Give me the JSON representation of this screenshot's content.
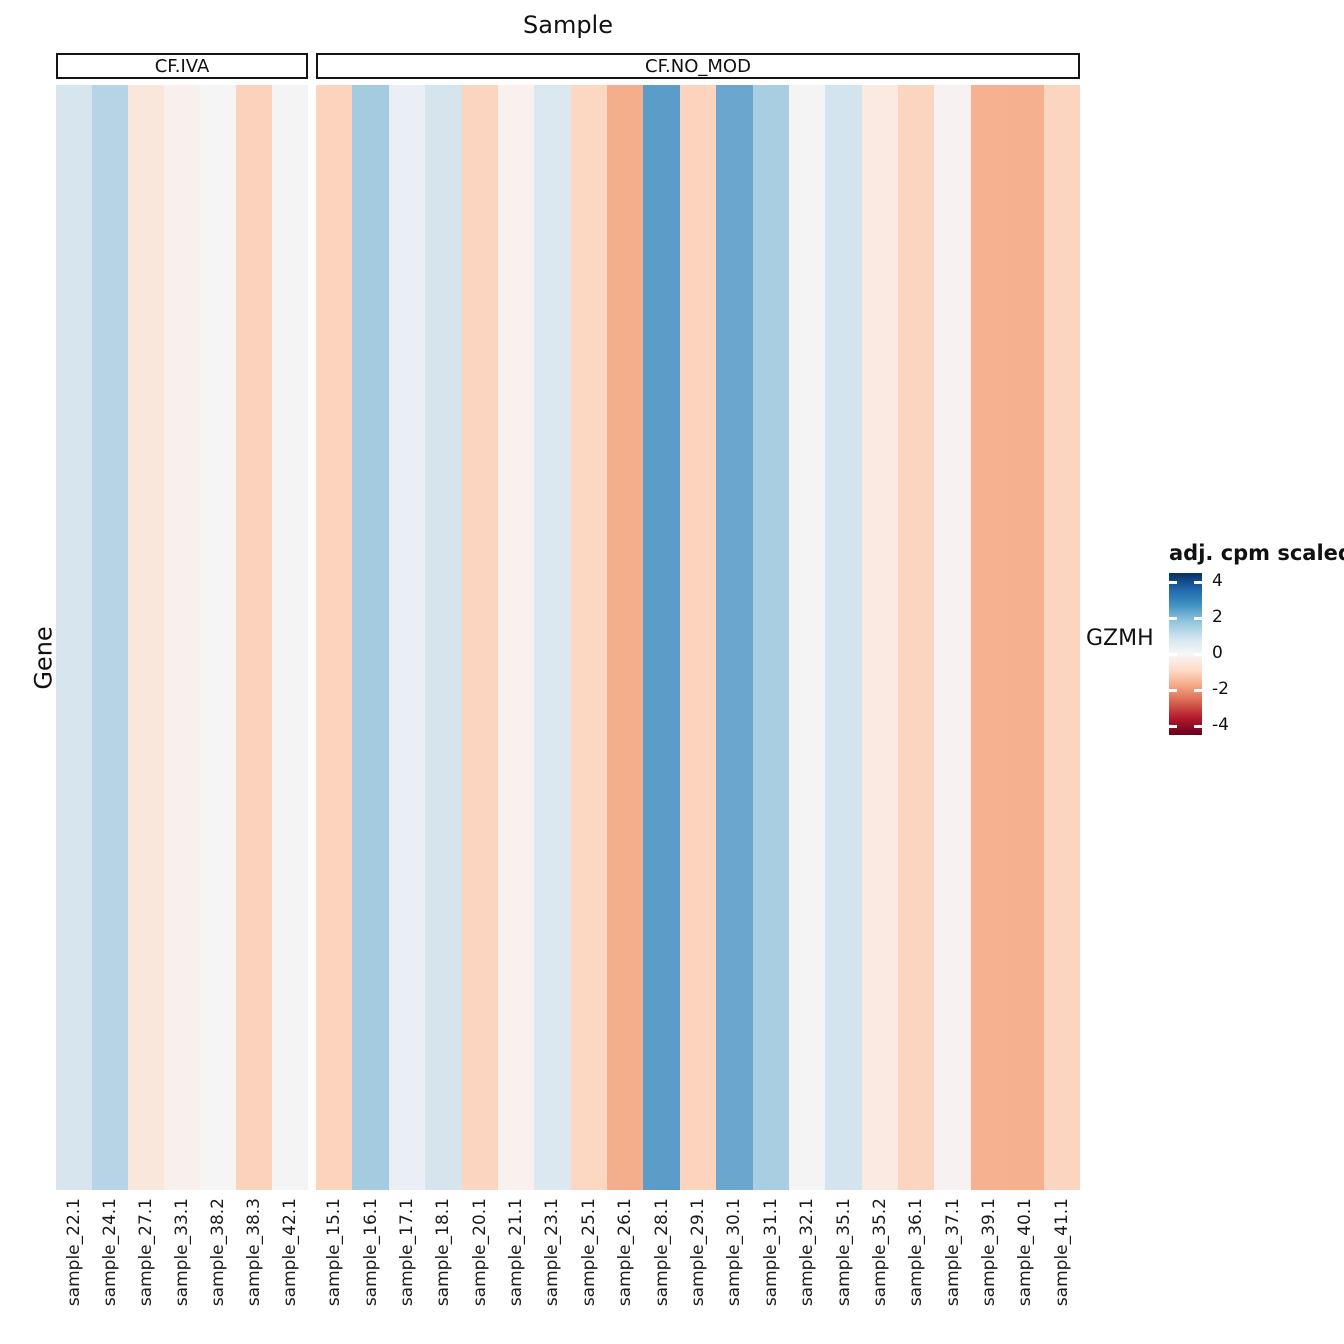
{
  "title": "Sample",
  "y_axis_title": "Gene",
  "row_label": "GZMH",
  "legend": {
    "title": "adj. cpm scaled",
    "tick_labels": [
      "4",
      "2",
      "0",
      "-2",
      "-4"
    ],
    "tick_values": [
      4,
      2,
      0,
      -2,
      -4
    ],
    "limits": [
      -4.5,
      4.5
    ]
  },
  "chart_data": {
    "type": "heatmap",
    "title": "Sample",
    "xlabel": "Sample",
    "ylabel": "Gene",
    "rows": [
      "GZMH"
    ],
    "legend_title": "adj. cpm scaled",
    "legend_position": "right",
    "colorscale": {
      "name": "RdBu",
      "limits": [
        -4.5,
        4.5
      ],
      "ticks": [
        4,
        2,
        0,
        -2,
        -4
      ],
      "stops_top_to_bottom": [
        "#053061",
        "#2166ac",
        "#4393c3",
        "#92c5de",
        "#d1e5f0",
        "#f7f7f7",
        "#fddbc7",
        "#f4a582",
        "#d6604d",
        "#b2182b",
        "#67001f"
      ]
    },
    "groups": [
      {
        "label": "CF.IVA",
        "samples": [
          {
            "id": "sample_22.1",
            "value": 0.85,
            "color": "#d7e5ef"
          },
          {
            "id": "sample_24.1",
            "value": 1.35,
            "color": "#b6d4e5"
          },
          {
            "id": "sample_27.1",
            "value": -0.55,
            "color": "#fae7dc"
          },
          {
            "id": "sample_33.1",
            "value": -0.2,
            "color": "#f8f0ec"
          },
          {
            "id": "sample_38.2",
            "value": -0.05,
            "color": "#f6f5f5"
          },
          {
            "id": "sample_38.3",
            "value": -1.0,
            "color": "#fbd2bb"
          },
          {
            "id": "sample_42.1",
            "value": 0.05,
            "color": "#f5f4f5"
          }
        ]
      },
      {
        "label": "CF.NO_MOD",
        "samples": [
          {
            "id": "sample_15.1",
            "value": -1.0,
            "color": "#fcd4bd"
          },
          {
            "id": "sample_16.1",
            "value": 1.65,
            "color": "#a4cbe0"
          },
          {
            "id": "sample_17.1",
            "value": 0.45,
            "color": "#e9eff5"
          },
          {
            "id": "sample_18.1",
            "value": 0.85,
            "color": "#d6e4ee"
          },
          {
            "id": "sample_20.1",
            "value": -0.95,
            "color": "#fcd5c0"
          },
          {
            "id": "sample_21.1",
            "value": -0.2,
            "color": "#f9f1ee"
          },
          {
            "id": "sample_23.1",
            "value": 0.75,
            "color": "#dce8f0"
          },
          {
            "id": "sample_25.1",
            "value": -0.9,
            "color": "#fcd8c3"
          },
          {
            "id": "sample_26.1",
            "value": -1.75,
            "color": "#f5ae8c"
          },
          {
            "id": "sample_28.1",
            "value": 2.5,
            "color": "#5b9cc9"
          },
          {
            "id": "sample_29.1",
            "value": -1.0,
            "color": "#fcd4bd"
          },
          {
            "id": "sample_30.1",
            "value": 2.3,
            "color": "#6ba6cf"
          },
          {
            "id": "sample_31.1",
            "value": 1.6,
            "color": "#a9cde1"
          },
          {
            "id": "sample_32.1",
            "value": 0.0,
            "color": "#f4f4f5"
          },
          {
            "id": "sample_35.1",
            "value": 0.9,
            "color": "#d4e4ee"
          },
          {
            "id": "sample_35.2",
            "value": -0.45,
            "color": "#faeae1"
          },
          {
            "id": "sample_36.1",
            "value": -0.95,
            "color": "#fbd5c0"
          },
          {
            "id": "sample_37.1",
            "value": -0.15,
            "color": "#f7f2f1"
          },
          {
            "id": "sample_39.1",
            "value": -1.7,
            "color": "#f5b190"
          },
          {
            "id": "sample_40.1",
            "value": -1.7,
            "color": "#f5b08f"
          },
          {
            "id": "sample_41.1",
            "value": -0.95,
            "color": "#fbd5c0"
          }
        ]
      }
    ]
  }
}
